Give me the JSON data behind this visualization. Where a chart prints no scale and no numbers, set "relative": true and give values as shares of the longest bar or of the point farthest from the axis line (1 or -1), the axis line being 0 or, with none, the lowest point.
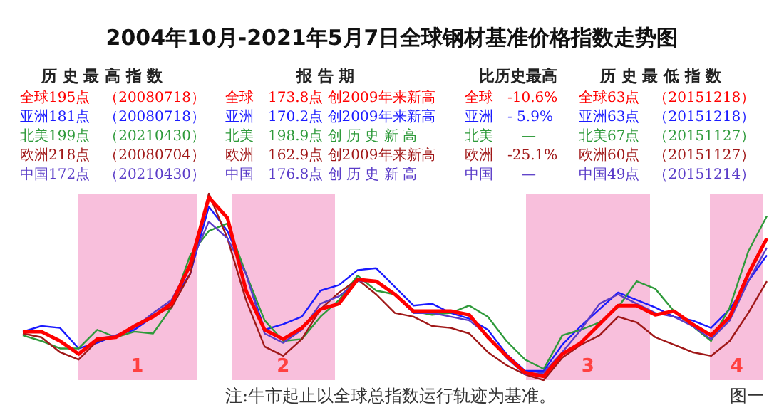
{
  "chart_data": {
    "type": "line",
    "title": "2004年10月-2021年5月7日全球钢材基准价格指数走势图",
    "relative": true,
    "tick_labels": false,
    "marker": "none",
    "categories": [
      null,
      null,
      null,
      null,
      null,
      null,
      null,
      null,
      null,
      null,
      null,
      null,
      null,
      null,
      null,
      null,
      null,
      null,
      null,
      null,
      null,
      null,
      null,
      null,
      null,
      null,
      null,
      null,
      null,
      null,
      null,
      null,
      null,
      null,
      null,
      null,
      null,
      null,
      null,
      null,
      null
    ],
    "series": [
      {
        "color": "#ff0000",
        "values": [
          0.26,
          0.26,
          0.21,
          0.14,
          0.22,
          0.23,
          0.29,
          0.34,
          0.41,
          0.62,
          0.98,
          0.87,
          0.48,
          0.27,
          0.22,
          0.28,
          0.38,
          0.41,
          0.54,
          0.53,
          0.46,
          0.37,
          0.37,
          0.37,
          0.35,
          0.23,
          0.13,
          0.04,
          0.02,
          0.14,
          0.2,
          0.3,
          0.4,
          0.4,
          0.35,
          0.37,
          0.3,
          0.24,
          0.34,
          0.57,
          0.76
        ]
      },
      {
        "color": "#1a1aff",
        "values": [
          0.26,
          0.29,
          0.28,
          0.17,
          0.2,
          0.24,
          0.27,
          0.34,
          0.42,
          0.57,
          0.93,
          0.8,
          0.57,
          0.27,
          0.3,
          0.34,
          0.48,
          0.51,
          0.59,
          0.6,
          0.5,
          0.4,
          0.41,
          0.36,
          0.33,
          0.27,
          0.14,
          0.05,
          0.05,
          0.19,
          0.29,
          0.38,
          0.47,
          0.43,
          0.39,
          0.34,
          0.32,
          0.28,
          0.38,
          0.53,
          0.67
        ]
      },
      {
        "color": "#2e9a3a",
        "values": [
          0.24,
          0.21,
          0.17,
          0.17,
          0.27,
          0.23,
          0.26,
          0.25,
          0.39,
          0.67,
          0.8,
          0.84,
          0.57,
          0.32,
          0.21,
          0.22,
          0.34,
          0.43,
          0.56,
          0.48,
          0.46,
          0.37,
          0.35,
          0.36,
          0.4,
          0.34,
          0.21,
          0.11,
          0.06,
          0.24,
          0.27,
          0.31,
          0.39,
          0.53,
          0.49,
          0.37,
          0.29,
          0.21,
          0.39,
          0.69,
          0.88
        ]
      },
      {
        "color": "#a01818",
        "values": [
          0.25,
          0.23,
          0.15,
          0.11,
          0.21,
          0.23,
          0.29,
          0.35,
          0.39,
          0.57,
          1.0,
          0.76,
          0.43,
          0.18,
          0.13,
          0.22,
          0.38,
          0.47,
          0.54,
          0.46,
          0.36,
          0.34,
          0.29,
          0.28,
          0.25,
          0.15,
          0.08,
          0.03,
          0.0,
          0.12,
          0.19,
          0.24,
          0.34,
          0.31,
          0.23,
          0.19,
          0.15,
          0.13,
          0.21,
          0.36,
          0.53
        ]
      },
      {
        "color": "#5a3cc8",
        "values": [
          null,
          null,
          null,
          0.14,
          0.22,
          0.24,
          0.28,
          0.36,
          0.43,
          0.62,
          0.85,
          0.76,
          0.57,
          0.25,
          0.2,
          0.27,
          0.41,
          0.45,
          0.53,
          0.53,
          0.46,
          0.36,
          0.36,
          0.34,
          0.32,
          0.24,
          0.12,
          0.03,
          0.04,
          0.15,
          0.27,
          0.41,
          0.46,
          0.41,
          0.36,
          0.34,
          0.29,
          0.22,
          0.32,
          0.53,
          0.71
        ]
      }
    ],
    "annotations": [
      "历 史 最 高 指 数",
      "报 告 期",
      "比历史最高",
      "历 史 最 低 指 数",
      "全球195点　（20080718）",
      "全球　173.8点 创2009年来新高",
      "全球　-10.6%",
      "全球63点　（20151218）",
      "亚洲181点　（20080718）",
      "亚洲　170.2点 创2009年来新高",
      "亚洲　- 5.9%",
      "亚洲63点　（20151218）",
      "北美199点　（20210430）",
      "北美　198.9点 创 历 史 新 高",
      "北美　　—",
      "北美67点　（20151127）",
      "欧洲218点　（20080704）",
      "欧洲　162.9点 创2009年来新高",
      "欧洲　-25.1%",
      "欧洲60点　（20151127）",
      "中国172点　（20210430）",
      "中国　176.8点 创 历 史 新 高",
      "中国　　—",
      "中国49点　（20151214）",
      "注:牛市起止以全球总指数运行轨迹为基准。",
      "图一",
      "1",
      "2",
      "3",
      "4"
    ]
  }
}
